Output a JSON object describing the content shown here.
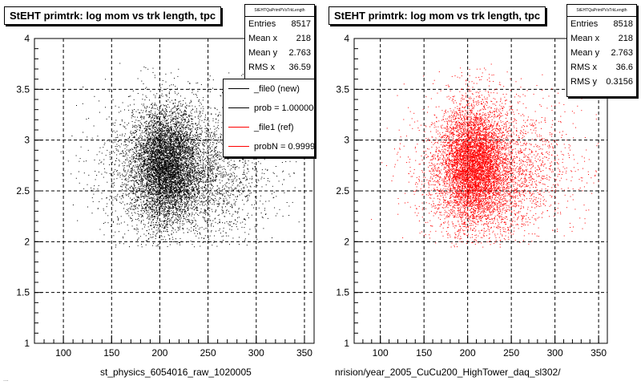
{
  "chart_data": [
    {
      "type": "scatter",
      "title": "StEHT primtrk: log mom vs trk length, tpc",
      "xlabel": "st_physics_6054016_raw_1020005",
      "ylabel": "",
      "xlim": [
        70,
        360
      ],
      "ylim": [
        1,
        4
      ],
      "x_ticks": [
        "100",
        "150",
        "200",
        "250",
        "300",
        "350"
      ],
      "y_ticks": [
        "1",
        "1.5",
        "2",
        "2.5",
        "3",
        "3.5",
        "4"
      ],
      "grid": true,
      "marker_color": "#000000",
      "stats": {
        "header": "StEHTQaPrimPVsTrkLength",
        "rows": [
          {
            "label": "Entries",
            "value": "8517"
          },
          {
            "label": "Mean x",
            "value": "218"
          },
          {
            "label": "Mean y",
            "value": "2.763"
          },
          {
            "label": "RMS x",
            "value": "36.59"
          }
        ]
      },
      "legend": [
        {
          "label": "_file0 (new)",
          "color": "#000000"
        },
        {
          "label": "prob = 1.000000",
          "color": "#000000"
        },
        {
          "label": "_file1 (ref)",
          "color": "#ff0000"
        },
        {
          "label": "probN = 0.999981",
          "color": "#ff0000"
        }
      ],
      "distribution": {
        "entries": 8517,
        "mean_x": 218,
        "mean_y": 2.763,
        "rms_x": 36.59,
        "rms_y": 0.3156,
        "x_min": 75,
        "x_max": 350,
        "y_min": 1.95,
        "y_max": 3.85
      }
    },
    {
      "type": "scatter",
      "title": "StEHT primtrk: log mom vs trk length, tpc",
      "xlabel": "nrision/year_2005_CuCu200_HighTower_daq_sl302/",
      "ylabel": "",
      "xlim": [
        70,
        360
      ],
      "ylim": [
        1,
        4
      ],
      "x_ticks": [
        "100",
        "150",
        "200",
        "250",
        "300",
        "350"
      ],
      "y_ticks": [
        "1",
        "1.5",
        "2",
        "2.5",
        "3",
        "3.5",
        "4"
      ],
      "grid": true,
      "marker_color": "#ff0000",
      "stats": {
        "header": "StEHTQaPrimPVsTrkLength",
        "rows": [
          {
            "label": "Entries",
            "value": "8518"
          },
          {
            "label": "Mean x",
            "value": "218"
          },
          {
            "label": "Mean y",
            "value": "2.763"
          },
          {
            "label": "RMS x",
            "value": "36.6"
          },
          {
            "label": "RMS y",
            "value": "0.3156"
          }
        ]
      },
      "distribution": {
        "entries": 8518,
        "mean_x": 218,
        "mean_y": 2.763,
        "rms_x": 36.6,
        "rms_y": 0.3156,
        "x_min": 75,
        "x_max": 350,
        "y_min": 1.95,
        "y_max": 3.85
      }
    }
  ],
  "footer_text": "..."
}
